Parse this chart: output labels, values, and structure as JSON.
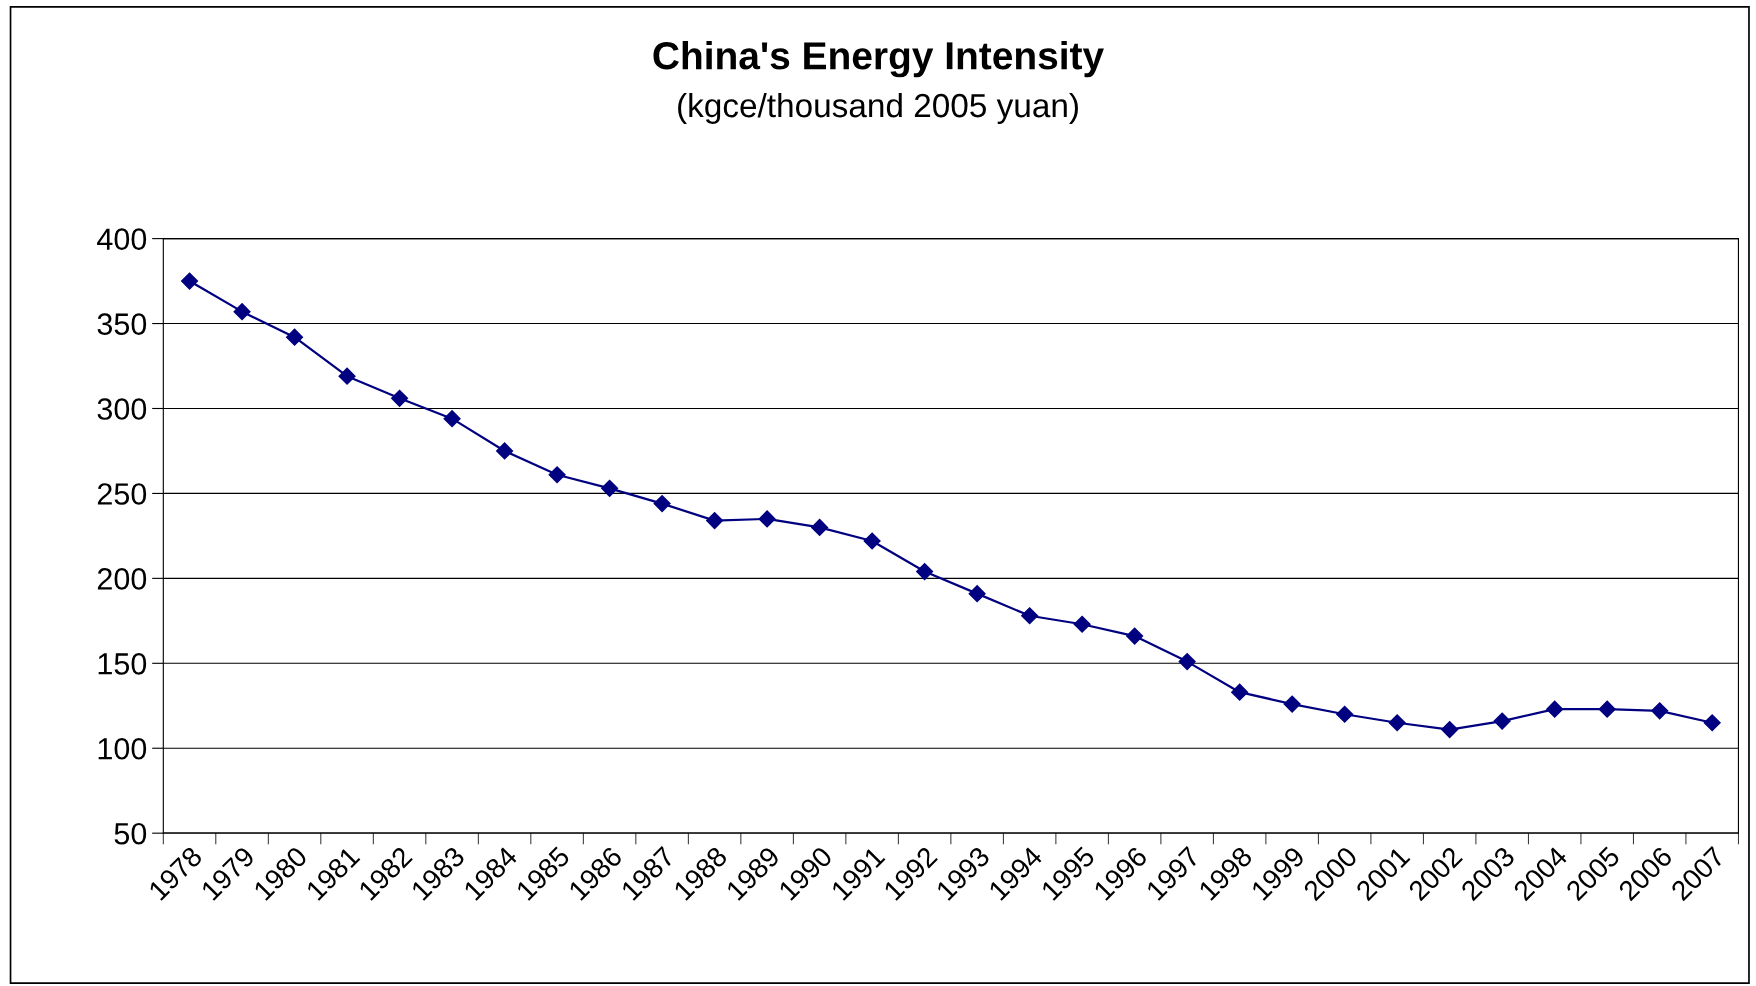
{
  "chart_data": {
    "type": "line",
    "title": "China's Energy Intensity",
    "subtitle": "(kgce/thousand 2005 yuan)",
    "categories": [
      "1978",
      "1979",
      "1980",
      "1981",
      "1982",
      "1983",
      "1984",
      "1985",
      "1986",
      "1987",
      "1988",
      "1989",
      "1990",
      "1991",
      "1992",
      "1993",
      "1994",
      "1995",
      "1996",
      "1997",
      "1998",
      "1999",
      "2000",
      "2001",
      "2002",
      "2003",
      "2004",
      "2005",
      "2006",
      "2007"
    ],
    "series": [
      {
        "color": "#000080",
        "values": [
          375,
          357,
          342,
          319,
          306,
          294,
          275,
          261,
          253,
          244,
          234,
          235,
          230,
          222,
          204,
          191,
          178,
          173,
          166,
          151,
          133,
          126,
          120,
          115,
          111,
          116,
          123,
          123,
          122,
          115
        ]
      }
    ],
    "ylim": [
      50,
      400
    ],
    "yticks": [
      50,
      100,
      150,
      200,
      250,
      300,
      350,
      400
    ],
    "grid": "y",
    "marker": "diamond",
    "line_style": "solid",
    "legend": false
  }
}
